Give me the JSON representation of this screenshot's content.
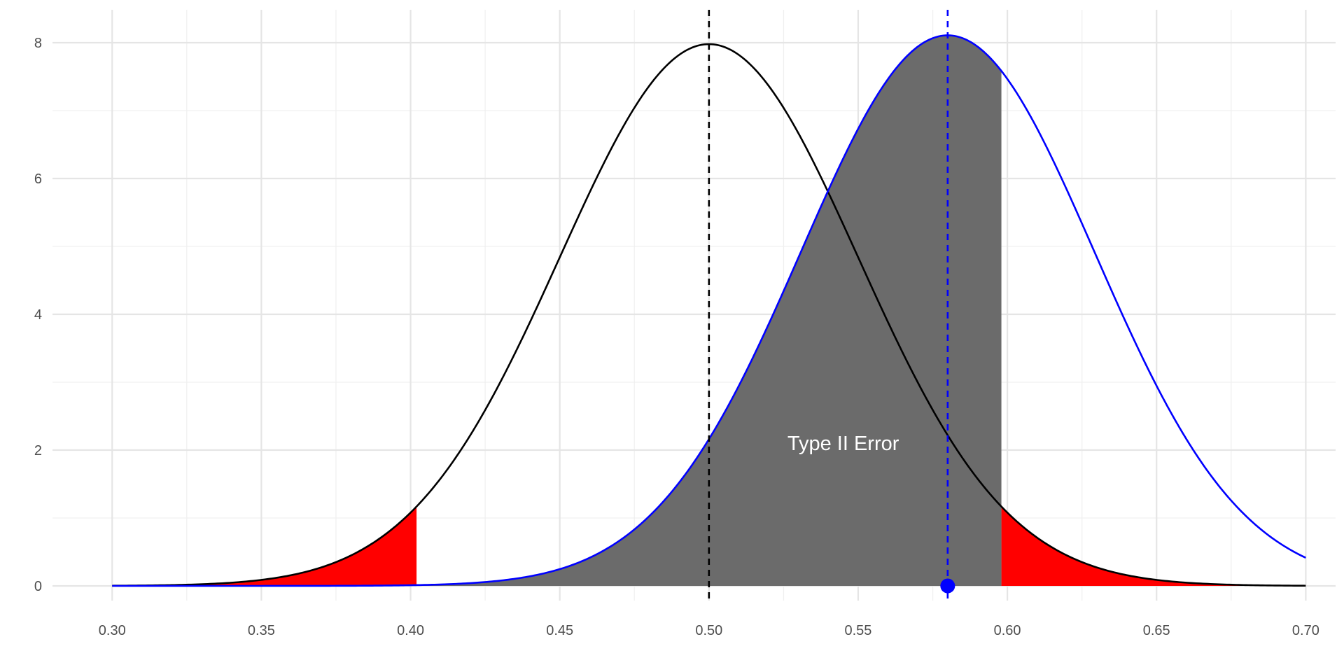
{
  "chart_data": {
    "type": "area",
    "title": "",
    "xlabel": "",
    "ylabel": "",
    "xlim": [
      0.28,
      0.71
    ],
    "ylim": [
      0,
      8.2
    ],
    "x_ticks": [
      "0.30",
      "0.35",
      "0.40",
      "0.45",
      "0.50",
      "0.55",
      "0.60",
      "0.65",
      "0.70"
    ],
    "y_ticks": [
      "0",
      "2",
      "4",
      "6",
      "8"
    ],
    "grid": true,
    "legend": "none",
    "series": [
      {
        "role": "null-distribution",
        "distribution": "normal",
        "mean": 0.5,
        "sd": 0.05,
        "x_range": [
          0.3,
          0.7
        ],
        "color": "#000000",
        "mean_line": {
          "x": 0.5,
          "style": "dashed",
          "color": "#000000"
        }
      },
      {
        "role": "alternative-distribution",
        "distribution": "normal",
        "mean": 0.58,
        "sd": 0.0492,
        "x_range": [
          0.3,
          0.7
        ],
        "color": "#0000ff",
        "mean_line": {
          "x": 0.58,
          "style": "dashed",
          "color": "#0000ff"
        },
        "point": {
          "x": 0.58,
          "y": 0
        }
      }
    ],
    "shaded_regions": [
      {
        "name": "rejection-lower",
        "under": "null-distribution",
        "x_from": 0.3,
        "x_to": 0.402,
        "color": "#ff0000"
      },
      {
        "name": "rejection-upper",
        "under": "null-distribution",
        "x_from": 0.598,
        "x_to": 0.7,
        "color": "#ff0000"
      },
      {
        "name": "type-ii-error",
        "under": "alternative-distribution",
        "x_from": 0.402,
        "x_to": 0.598,
        "color": "#6b6b6b"
      }
    ],
    "annotations": [
      {
        "text": "Type II Error",
        "x": 0.545,
        "y": 2.0,
        "color": "#ffffff"
      }
    ]
  }
}
